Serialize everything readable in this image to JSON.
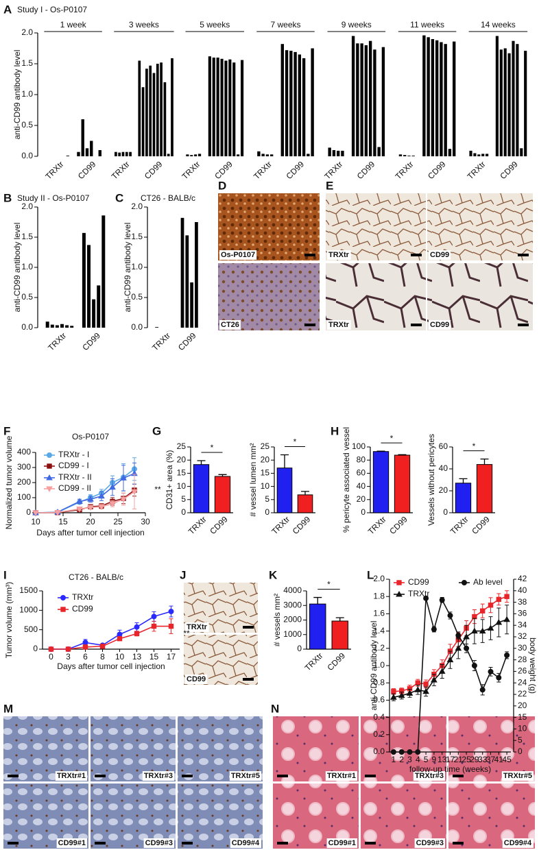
{
  "panels": [
    "A",
    "B",
    "C",
    "D",
    "E",
    "F",
    "G",
    "H",
    "I",
    "J",
    "K",
    "L",
    "M",
    "N"
  ],
  "images": {
    "D": [
      "Os-P0107",
      "CT26"
    ],
    "E": [
      "TRXtr",
      "CD99",
      "TRXtr",
      "CD99"
    ],
    "J": [
      "TRXtr",
      "CD99"
    ],
    "M": [
      "TRXtr#1",
      "TRXtr#3",
      "TRXtr#5",
      "CD99#1",
      "CD99#3",
      "CD99#4"
    ],
    "N": [
      "TRXtr#1",
      "TRXtr#3",
      "TRXtr#5",
      "CD99#1",
      "CD99#3",
      "CD99#4"
    ]
  },
  "chart_data": [
    {
      "type": "bars",
      "title": "Study I - Os-P0107",
      "y_label": "anti-CD99 antibody level",
      "color": "#000000",
      "ylim": [
        0,
        2
      ],
      "yticks": [
        {
          "value": 0,
          "label": "0.0"
        },
        0.5,
        {
          "value": 1,
          "label": "1.0"
        },
        1.5,
        {
          "value": 2,
          "label": "2.0"
        }
      ],
      "groups": [
        {
          "label": "1 week",
          "series": [
            {
              "name": "TRXtr",
              "values": [
                0,
                0,
                0,
                0,
                0,
                0.01
              ]
            },
            {
              "name": "CD99",
              "values": [
                0.07,
                0.6,
                0.13,
                0.25,
                0,
                0.1
              ]
            }
          ]
        },
        {
          "label": "3 weeks",
          "series": [
            {
              "name": "TRXtr",
              "values": [
                0.07,
                0.06,
                0.07,
                0.07,
                0.07
              ]
            },
            {
              "name": "CD99",
              "values": [
                1.55,
                1.12,
                1.42,
                1.47,
                1.35,
                1.5,
                1.52,
                1.2,
                0.04,
                1.59
              ]
            }
          ]
        },
        {
          "label": "5 weeks",
          "series": [
            {
              "name": "TRXtr",
              "values": [
                0.03,
                0.02,
                0.03,
                0.04
              ]
            },
            {
              "name": "CD99",
              "values": [
                1.62,
                1.6,
                1.6,
                1.58,
                1.55,
                1.57,
                1.52,
                0.03,
                1.56
              ]
            }
          ]
        },
        {
          "label": "7 weeks",
          "series": [
            {
              "name": "TRXtr",
              "values": [
                0.08,
                0.04,
                0.03,
                0.03
              ]
            },
            {
              "name": "CD99",
              "values": [
                1.82,
                1.72,
                1.71,
                1.69,
                1.65,
                1.59,
                0.04,
                1.75
              ]
            }
          ]
        },
        {
          "label": "9 weeks",
          "series": [
            {
              "name": "TRXtr",
              "values": [
                0.14,
                0.1,
                0.09,
                0.09
              ]
            },
            {
              "name": "CD99",
              "values": [
                1.95,
                1.83,
                1.83,
                1.8,
                1.87,
                1.73,
                0.15,
                1.77
              ]
            }
          ]
        },
        {
          "label": "11 weeks",
          "series": [
            {
              "name": "TRXtr",
              "values": [
                0.03,
                0.02,
                0.01,
                0.01
              ]
            },
            {
              "name": "CD99",
              "values": [
                1.96,
                1.93,
                1.9,
                1.88,
                1.85,
                1.82,
                0.12,
                1.86
              ]
            }
          ]
        },
        {
          "label": "14 weeks",
          "series": [
            {
              "name": "TRXtr",
              "values": [
                0.09,
                0.05,
                0.03,
                0.04,
                0.04
              ]
            },
            {
              "name": "CD99",
              "values": [
                1.95,
                1.73,
                1.75,
                1.67,
                1.87,
                1.82,
                0.13,
                1.71
              ]
            }
          ]
        }
      ]
    },
    {
      "type": "bars",
      "title": "Study II - Os-P0107",
      "y_label": "anti-CD99 antibody level",
      "color": "#000000",
      "ylim": [
        0,
        2
      ],
      "yticks": [
        {
          "value": 0,
          "label": "0.0"
        },
        0.5,
        {
          "value": 1,
          "label": "1.0"
        },
        1.5,
        {
          "value": 2,
          "label": "2.0"
        }
      ],
      "series": [
        {
          "name": "TRXtr",
          "values": [
            0.1,
            0.05,
            0.04,
            0.06,
            0.04,
            0.03
          ]
        },
        {
          "name": "CD99",
          "values": [
            1.57,
            1.37,
            0.47,
            0.7,
            1.86
          ]
        }
      ]
    },
    {
      "type": "bars",
      "title": "CT26 - BALB/c",
      "y_label": "anti-CD99 antibody level",
      "color": "#000000",
      "ylim": [
        0,
        2
      ],
      "yticks": [
        {
          "value": 0,
          "label": "0.0"
        },
        0.5,
        {
          "value": 1,
          "label": "1.0"
        },
        1.5,
        {
          "value": 2,
          "label": "2.0"
        }
      ],
      "series": [
        {
          "name": "TRXtr",
          "values": [
            0.01,
            0,
            0,
            0
          ]
        },
        {
          "name": "CD99",
          "values": [
            1.82,
            1.53,
            0.75,
            1.75
          ]
        }
      ]
    },
    {
      "type": "line",
      "title": "Os-P0107",
      "x_label": "Days after tumor cell injection",
      "y_label": "Normalized tumor volume",
      "x": [
        10,
        14,
        18,
        20,
        22,
        24,
        26,
        28
      ],
      "xlim": [
        10,
        30
      ],
      "xticks": [
        10,
        15,
        20,
        25,
        30
      ],
      "ylim": [
        0,
        400
      ],
      "yticks": [
        0,
        100,
        200,
        300,
        400
      ],
      "annotation": "**",
      "series": [
        {
          "name": "TRXtr - I",
          "color": "#5aa9e6",
          "marker": "circle",
          "values": [
            0,
            3,
            70,
            100,
            130,
            200,
            235,
            290
          ],
          "errors": [
            0,
            3,
            12,
            20,
            25,
            45,
            90,
            75
          ]
        },
        {
          "name": "CD99 - I",
          "color": "#8b1111",
          "marker": "square",
          "values": [
            0,
            1,
            20,
            40,
            45,
            75,
            95,
            150
          ],
          "errors": [
            0,
            2,
            8,
            12,
            15,
            25,
            35,
            40
          ]
        },
        {
          "name": "TRXtr - II",
          "color": "#4169e1",
          "marker": "triangle",
          "values": [
            0,
            4,
            75,
            90,
            110,
            170,
            230,
            260
          ],
          "errors": [
            0,
            3,
            15,
            20,
            30,
            55,
            85,
            70
          ]
        },
        {
          "name": "CD99 - II",
          "color": "#f4a0a0",
          "marker": "triangle-down",
          "values": [
            0,
            2,
            25,
            35,
            40,
            60,
            90,
            140
          ],
          "errors": [
            0,
            2,
            10,
            12,
            15,
            20,
            40,
            115
          ]
        }
      ]
    },
    {
      "type": "bar",
      "y_label": "CD31+ area (%)",
      "ylim": [
        0,
        25
      ],
      "yticks": [
        0,
        5,
        10,
        15,
        20,
        25
      ],
      "categories": [
        "TRXtr",
        "CD99"
      ],
      "values": [
        18.3,
        13.8
      ],
      "errors": [
        1.5,
        0.7
      ],
      "colors": [
        "#2020f0",
        "#f02020"
      ],
      "significance": "*"
    },
    {
      "type": "bar",
      "y_label": "# vessel lumen mm²",
      "ylim": [
        0,
        25
      ],
      "yticks": [
        0,
        5,
        10,
        15,
        20,
        25
      ],
      "categories": [
        "TRXtr",
        "CD99"
      ],
      "values": [
        17,
        6.8
      ],
      "errors": [
        5,
        1.3
      ],
      "colors": [
        "#2020f0",
        "#f02020"
      ],
      "significance": "*"
    },
    {
      "type": "bar",
      "y_label": "% pericyte associated vessel",
      "ylim": [
        0,
        100
      ],
      "yticks": [
        0,
        20,
        40,
        60,
        80,
        100
      ],
      "categories": [
        "TRXtr",
        "CD99"
      ],
      "values": [
        93,
        87.5
      ],
      "errors": [
        0.6,
        0.8
      ],
      "colors": [
        "#2020f0",
        "#f02020"
      ],
      "significance": "*"
    },
    {
      "type": "bar",
      "y_label": "Vessels without pericytes",
      "ylim": [
        0,
        60
      ],
      "yticks": [
        0,
        20,
        40,
        60
      ],
      "categories": [
        "TRXtr",
        "CD99"
      ],
      "values": [
        27,
        44
      ],
      "errors": [
        4,
        5
      ],
      "colors": [
        "#2020f0",
        "#f02020"
      ],
      "significance": "*"
    },
    {
      "type": "line",
      "title": "CT26 - BALB/c",
      "x_label": "Days after tumor cell injection",
      "y_label": "Tumor volume (mm³)",
      "categories": [
        0,
        3,
        6,
        8,
        10,
        13,
        15,
        17
      ],
      "ylim": [
        0,
        1500
      ],
      "yticks": [
        0,
        500,
        1000,
        1500
      ],
      "annotation": "**",
      "series": [
        {
          "name": "TRXtr",
          "color": "#2a2aff",
          "marker": "circle",
          "values": [
            0,
            0,
            170,
            100,
            380,
            570,
            840,
            970
          ],
          "errors": [
            0,
            0,
            80,
            25,
            110,
            110,
            125,
            140
          ]
        },
        {
          "name": "CD99",
          "color": "#e8252b",
          "marker": "square",
          "values": [
            0,
            0,
            55,
            75,
            270,
            400,
            590,
            590
          ],
          "errors": [
            0,
            0,
            30,
            20,
            45,
            60,
            130,
            190
          ]
        }
      ]
    },
    {
      "type": "bar",
      "y_label": "# vessels mm²",
      "ylim": [
        0,
        4000
      ],
      "yticks": [
        0,
        1000,
        2000,
        3000,
        4000
      ],
      "categories": [
        "TRXtr",
        "CD99"
      ],
      "values": [
        3100,
        1930
      ],
      "errors": [
        450,
        230
      ],
      "colors": [
        "#2020f0",
        "#f02020"
      ],
      "significance": "*"
    },
    {
      "type": "line",
      "x_label": "follow-up time (weeks)",
      "y_label": "anti-CD99 antibody level",
      "y2_label": "body weight (g)",
      "categories": [
        1,
        2,
        3,
        4,
        5,
        9,
        13,
        17,
        21,
        25,
        29,
        33,
        37,
        41,
        45
      ],
      "ylim": [
        0,
        2
      ],
      "yticks": [
        {
          "value": 0,
          "label": "0.0"
        },
        0.2,
        0.4,
        0.6,
        0.8,
        {
          "value": 1,
          "label": "1.0"
        },
        1.2,
        1.4,
        1.6,
        1.8,
        {
          "value": 2,
          "label": "2.0"
        }
      ],
      "y2lim": [
        0,
        42
      ],
      "y2ticks": [
        0,
        5,
        10,
        15,
        20,
        22,
        24,
        26,
        28,
        30,
        32,
        34,
        36,
        38,
        40,
        42
      ],
      "series": [
        {
          "name": "CD99",
          "color": "#e8252b",
          "marker": "square",
          "axis": "y2",
          "values": [
            22.5,
            22.6,
            23,
            24,
            23.8,
            25.5,
            27,
            29.5,
            31.5,
            33.5,
            35.5,
            36.5,
            37.5,
            38.5,
            39
          ],
          "errors": [
            0.5,
            0.5,
            0.6,
            0.6,
            0.7,
            0.8,
            1,
            1.2,
            1.2,
            1.3,
            1.2,
            1.2,
            1.3,
            1,
            1
          ]
        },
        {
          "name": "TRXtr",
          "color": "#111111",
          "marker": "triangle",
          "axis": "y2",
          "values": [
            21.5,
            21.8,
            22.2,
            22.8,
            22.5,
            24.5,
            26,
            28,
            30,
            32,
            33,
            33,
            33.5,
            34.5,
            35
          ],
          "errors": [
            0.6,
            0.6,
            0.7,
            0.8,
            0.8,
            1,
            1.2,
            1.5,
            1.8,
            2,
            2.2,
            2,
            2,
            2.5,
            2.5
          ]
        },
        {
          "name": "Ab level",
          "color": "#111111",
          "marker": "circle",
          "values": [
            0,
            0,
            0,
            0,
            1.78,
            1.42,
            1.76,
            1.58,
            1.35,
            1.2,
            1,
            0.72,
            0.93,
            0.86,
            1.12
          ],
          "errors": [
            0,
            0,
            0,
            0,
            0.02,
            0.03,
            0.03,
            0.04,
            0.04,
            0.05,
            0.06,
            0.06,
            0.05,
            0.05,
            0.04
          ]
        }
      ]
    }
  ]
}
